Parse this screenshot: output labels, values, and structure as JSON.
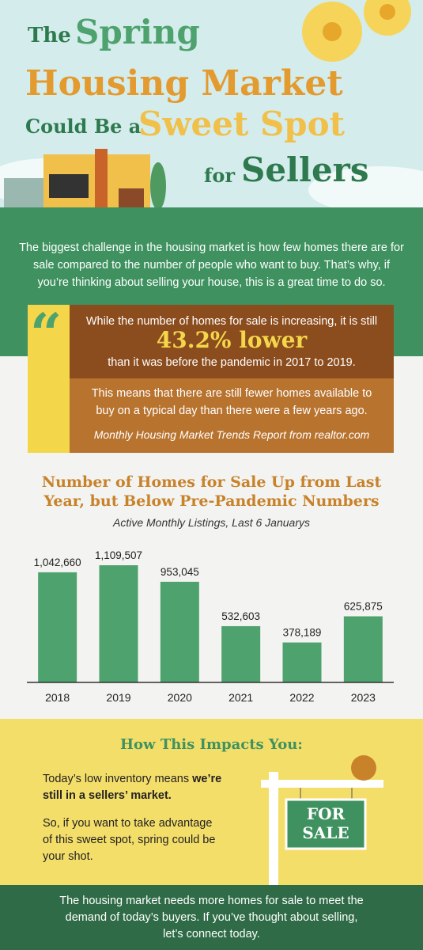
{
  "header": {
    "title": [
      "The",
      "Spring",
      "Housing Market",
      "Could Be a",
      "Sweet Spot",
      "for",
      "Sellers"
    ]
  },
  "intro": "The biggest challenge in the housing market is how few homes there are for sale compared to the number of people who want to buy. That’s why, if you’re thinking about selling your house, this is a great time to do so.",
  "quote": {
    "mark": "“",
    "lead": "While the number of homes for sale is increasing, it is still",
    "highlight": "43.2% lower",
    "tail": "than it was before the pandemic in 2017 to 2019.",
    "body": "This means that there are still fewer homes available to buy on a typical day than there were a few years ago.",
    "source": "Monthly Housing Market Trends Report from realtor.com"
  },
  "chart_data": {
    "type": "bar",
    "title": "Number of Homes for Sale Up from Last Year, but Below Pre-Pandemic Numbers",
    "subtitle": "Active Monthly Listings, Last 6 Januarys",
    "categories": [
      "2018",
      "2019",
      "2020",
      "2021",
      "2022",
      "2023"
    ],
    "values": [
      1042660,
      1109507,
      953045,
      532603,
      378189,
      625875
    ],
    "value_labels": [
      "1,042,660",
      "1,109,507",
      "953,045",
      "532,603",
      "378,189",
      "625,875"
    ],
    "color": "#4ea26d"
  },
  "impact": {
    "title": "How This Impacts You:",
    "line1": "Today’s low inventory means ",
    "line1_bold": "we’re still in a sellers’ market.",
    "line2": "So, if you want to take advantage of this sweet spot, spring could be your shot.",
    "sign": [
      "FOR",
      "SALE"
    ]
  },
  "footer": "The housing market needs more homes for sale to meet the demand of today’s buyers. If you’ve thought about selling, let’s connect today."
}
